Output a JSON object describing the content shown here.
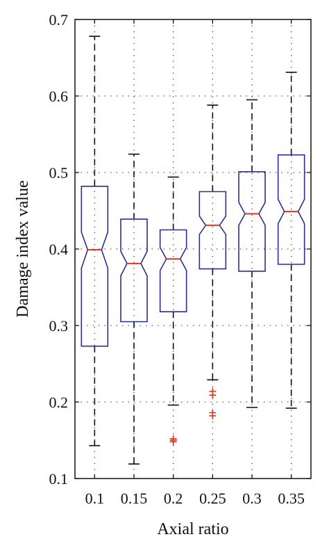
{
  "chart_data": {
    "type": "box",
    "categories": [
      "0.1",
      "0.15",
      "0.2",
      "0.25",
      "0.3",
      "0.35"
    ],
    "xlabel": "Axial ratio",
    "ylabel": "Damage index value",
    "ylim": [
      0.1,
      0.7
    ],
    "yticks": [
      "0.1",
      "0.2",
      "0.3",
      "0.4",
      "0.5",
      "0.6",
      "0.7"
    ],
    "grid": true,
    "notched": true,
    "boxes": [
      {
        "category": "0.1",
        "whisker_low": 0.143,
        "q1": 0.273,
        "median": 0.399,
        "q3": 0.482,
        "whisker_high": 0.678,
        "notch_low": 0.375,
        "notch_high": 0.422,
        "outliers": []
      },
      {
        "category": "0.15",
        "whisker_low": 0.119,
        "q1": 0.305,
        "median": 0.381,
        "q3": 0.439,
        "whisker_high": 0.524,
        "notch_low": 0.365,
        "notch_high": 0.397,
        "outliers": []
      },
      {
        "category": "0.2",
        "whisker_low": 0.196,
        "q1": 0.318,
        "median": 0.387,
        "q3": 0.425,
        "whisker_high": 0.494,
        "notch_low": 0.372,
        "notch_high": 0.402,
        "outliers": [
          0.148,
          0.15,
          0.152
        ]
      },
      {
        "category": "0.25",
        "whisker_low": 0.229,
        "q1": 0.374,
        "median": 0.431,
        "q3": 0.475,
        "whisker_high": 0.588,
        "notch_low": 0.419,
        "notch_high": 0.443,
        "outliers": [
          0.182,
          0.186,
          0.209,
          0.214
        ]
      },
      {
        "category": "0.3",
        "whisker_low": 0.193,
        "q1": 0.371,
        "median": 0.446,
        "q3": 0.501,
        "whisker_high": 0.595,
        "notch_low": 0.431,
        "notch_high": 0.461,
        "outliers": []
      },
      {
        "category": "0.35",
        "whisker_low": 0.192,
        "q1": 0.38,
        "median": 0.449,
        "q3": 0.523,
        "whisker_high": 0.631,
        "notch_low": 0.433,
        "notch_high": 0.465,
        "outliers": []
      }
    ],
    "colors": {
      "box": "#2b2f8f",
      "median": "#d9381e",
      "outlier": "#d9381e",
      "whisker": "#111111",
      "grid": "#555555"
    }
  }
}
